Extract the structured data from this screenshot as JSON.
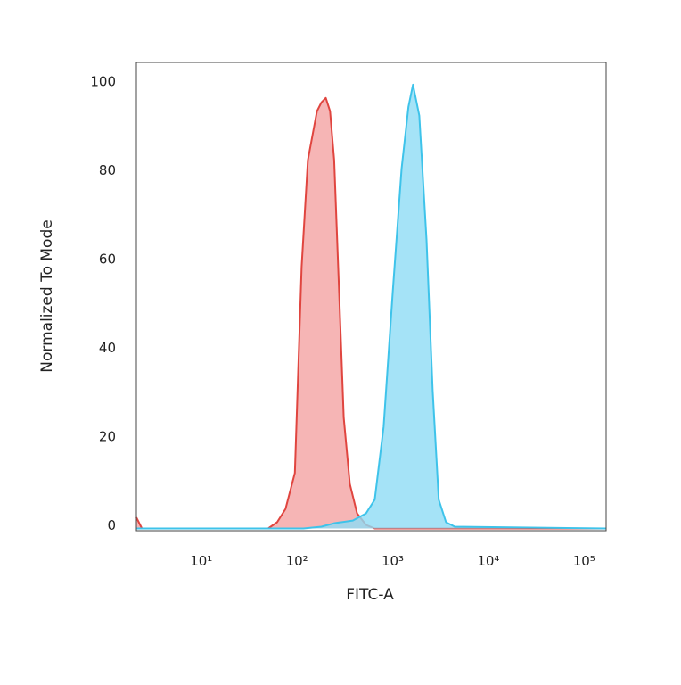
{
  "chart_data": {
    "type": "area",
    "x_label": "FITC-A",
    "y_label": "Normalized To Mode",
    "xscale": "log",
    "xlim": [
      2.1,
      170000
    ],
    "xticks": [
      {
        "value": 10,
        "label": "10¹"
      },
      {
        "value": 100,
        "label": "10²"
      },
      {
        "value": 1000,
        "label": "10³"
      },
      {
        "value": 10000,
        "label": "10⁴"
      },
      {
        "value": 100000,
        "label": "10⁵"
      }
    ],
    "ylim": [
      -0.5,
      105
    ],
    "yticks": [
      0,
      20,
      40,
      60,
      80,
      100
    ],
    "grid": false,
    "series": [
      {
        "color": "#e0453f",
        "fill": "#f4a3a3",
        "x": [
          2.1,
          2.4,
          50,
          62,
          76,
          95,
          112,
          130,
          162,
          180,
          200,
          222,
          245,
          276,
          308,
          357,
          425,
          526,
          650,
          170000
        ],
        "values": [
          2.5,
          0,
          0,
          1.4,
          4.4,
          12.5,
          59,
          83,
          94,
          96,
          97,
          94,
          83,
          53,
          25,
          10,
          3.4,
          0.8,
          0,
          0
        ]
      },
      {
        "color": "#3ec3ea",
        "fill": "#8fdcf5",
        "x": [
          2.1,
          117,
          180,
          248,
          383,
          526,
          650,
          805,
          1000,
          1240,
          1460,
          1630,
          1900,
          2260,
          2620,
          3030,
          3610,
          4450,
          170000
        ],
        "values": [
          0,
          0,
          0.4,
          1.2,
          1.8,
          3.4,
          6.5,
          23,
          53,
          81,
          95,
          100,
          93,
          65,
          31,
          6.5,
          1.4,
          0.4,
          0
        ]
      }
    ]
  }
}
